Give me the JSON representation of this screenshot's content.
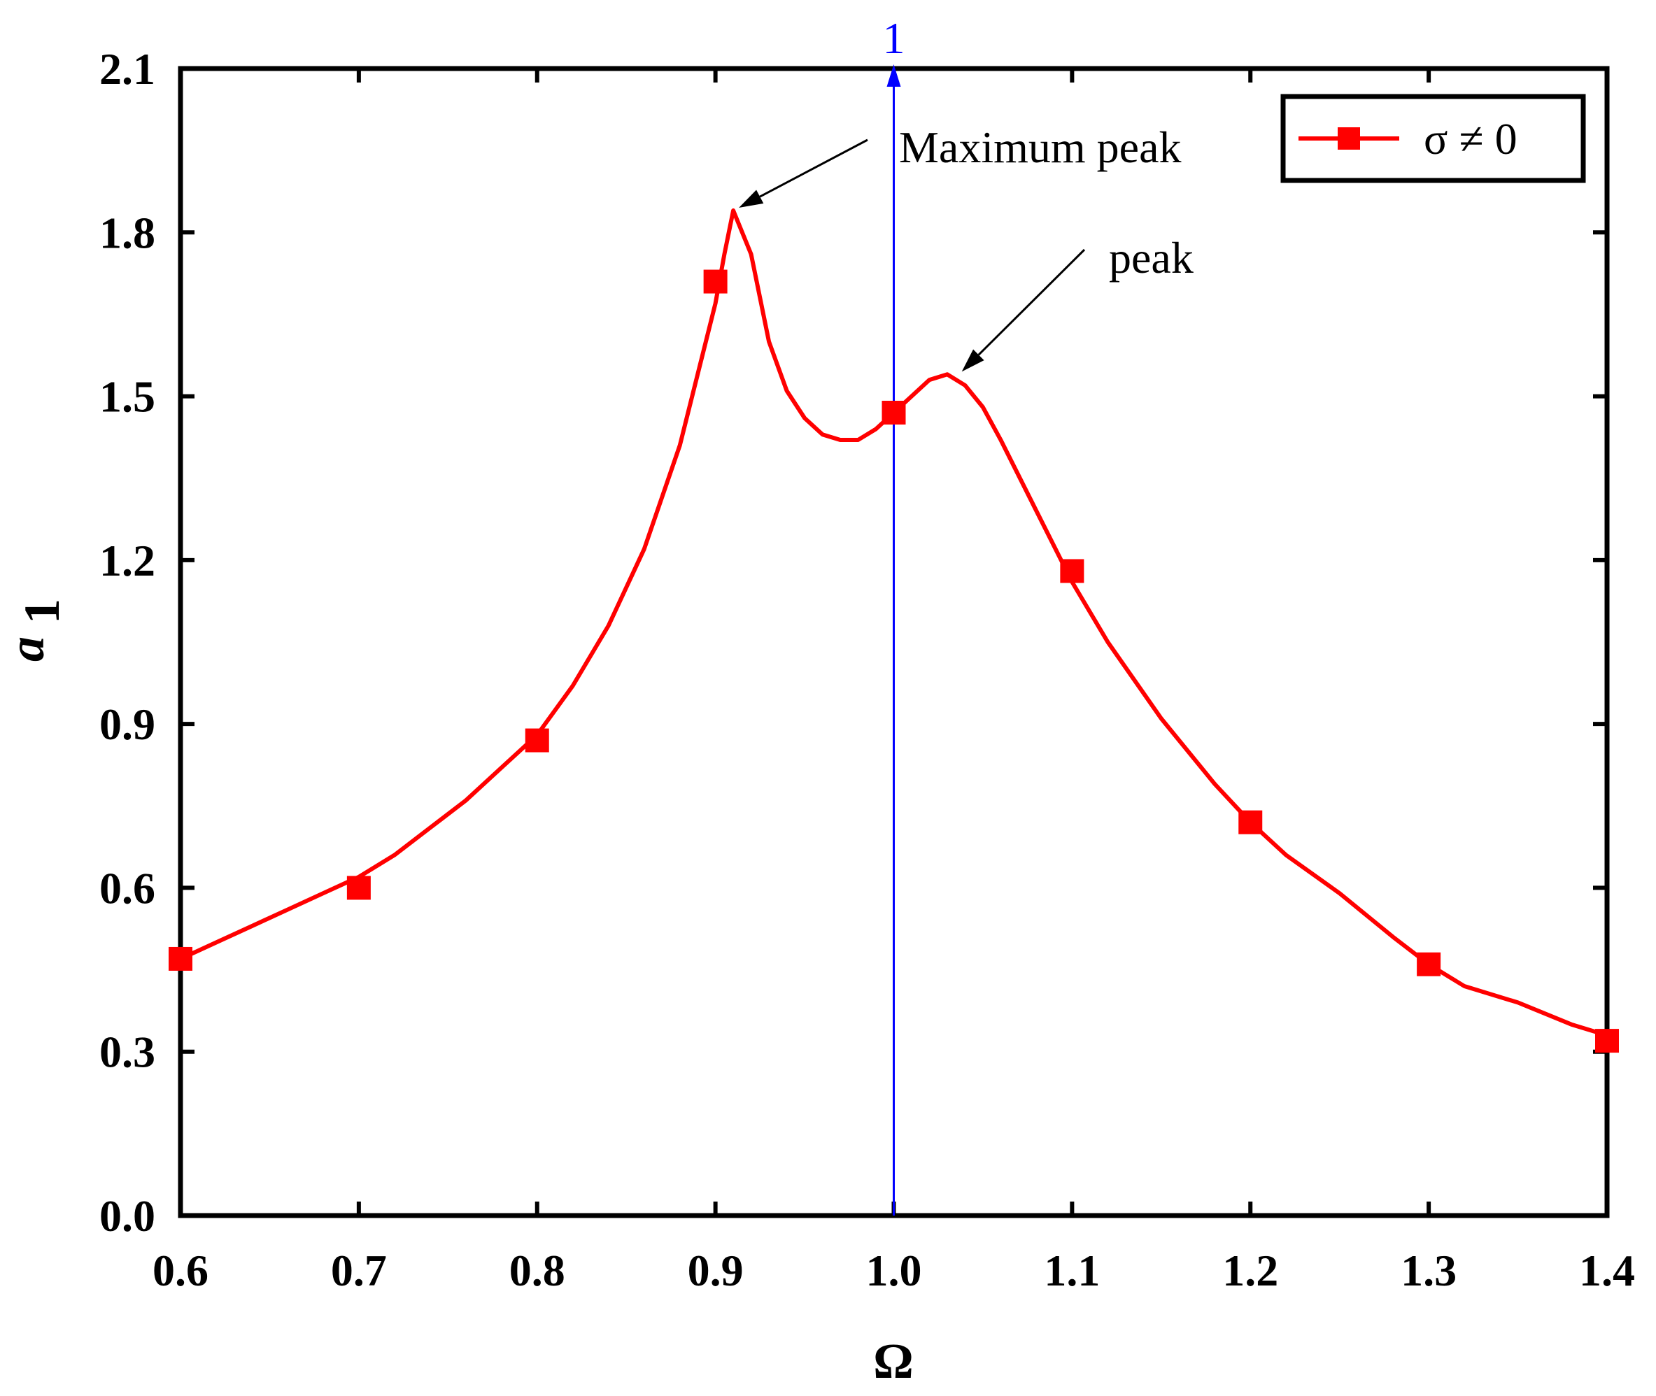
{
  "chart_data": {
    "type": "line",
    "title": "",
    "xlabel": "Ω",
    "ylabel_main": "a",
    "ylabel_sub": "1",
    "xlim": [
      0.6,
      1.4
    ],
    "ylim": [
      0.0,
      2.1
    ],
    "xticks": [
      0.6,
      0.7,
      0.8,
      0.9,
      1.0,
      1.1,
      1.2,
      1.3,
      1.4
    ],
    "xtick_labels": [
      "0.6",
      "0.7",
      "0.8",
      "0.9",
      "1.0",
      "1.1",
      "1.2",
      "1.3",
      "1.4"
    ],
    "yticks": [
      0.0,
      0.3,
      0.6,
      0.9,
      1.2,
      1.5,
      1.8,
      2.1
    ],
    "ytick_labels": [
      "0.0",
      "0.3",
      "0.6",
      "0.9",
      "1.2",
      "1.5",
      "1.8",
      "2.1"
    ],
    "grid": false,
    "legend_position": "top-right",
    "series": [
      {
        "name": "σ ≠ 0",
        "color": "#ff0000",
        "marker": "square",
        "curve_x": [
          0.6,
          0.62,
          0.64,
          0.66,
          0.68,
          0.7,
          0.72,
          0.74,
          0.76,
          0.78,
          0.8,
          0.82,
          0.84,
          0.86,
          0.88,
          0.9,
          0.905,
          0.91,
          0.92,
          0.93,
          0.94,
          0.95,
          0.96,
          0.97,
          0.98,
          0.99,
          1.0,
          1.01,
          1.02,
          1.03,
          1.04,
          1.05,
          1.06,
          1.08,
          1.1,
          1.12,
          1.15,
          1.18,
          1.2,
          1.22,
          1.25,
          1.28,
          1.3,
          1.32,
          1.35,
          1.38,
          1.4
        ],
        "curve_y": [
          0.47,
          0.5,
          0.53,
          0.56,
          0.59,
          0.62,
          0.66,
          0.71,
          0.76,
          0.82,
          0.88,
          0.97,
          1.08,
          1.22,
          1.41,
          1.67,
          1.76,
          1.84,
          1.76,
          1.6,
          1.51,
          1.46,
          1.43,
          1.42,
          1.42,
          1.44,
          1.47,
          1.5,
          1.53,
          1.54,
          1.52,
          1.48,
          1.42,
          1.29,
          1.16,
          1.05,
          0.91,
          0.79,
          0.72,
          0.66,
          0.59,
          0.51,
          0.46,
          0.42,
          0.39,
          0.35,
          0.33
        ],
        "markers_x": [
          0.6,
          0.7,
          0.8,
          0.9,
          1.0,
          1.1,
          1.2,
          1.3,
          1.4
        ],
        "markers_y": [
          0.47,
          0.6,
          0.87,
          1.71,
          1.47,
          1.18,
          0.72,
          0.46,
          0.32
        ]
      }
    ],
    "reference_line": {
      "x": 1.0,
      "label": "1",
      "color": "#0000ff"
    },
    "annotations": [
      {
        "text": "Maximum peak",
        "target_x": 0.91,
        "target_y": 1.84
      },
      {
        "text": "peak",
        "target_x": 1.035,
        "target_y": 1.54
      }
    ]
  }
}
